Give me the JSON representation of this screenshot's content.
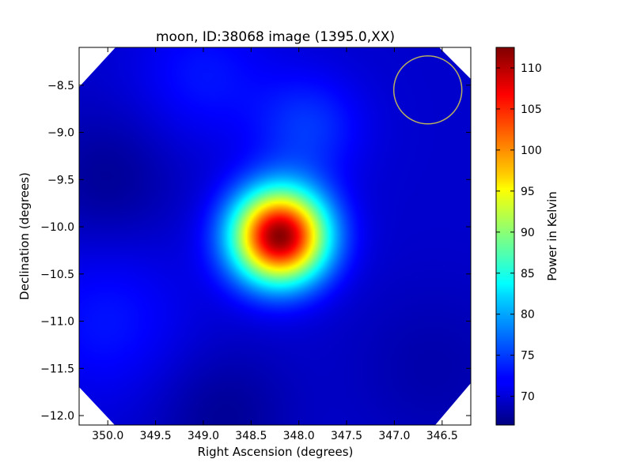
{
  "chart_data": {
    "type": "heatmap",
    "title": "moon, ID:38068 image (1395.0,XX)",
    "xlabel": "Right Ascension (degrees)",
    "ylabel": "Declination (degrees)",
    "colorbar_label": "Power in Kelvin",
    "xlim": [
      350.3,
      346.2
    ],
    "ylim": [
      -12.1,
      -8.1
    ],
    "x_ticks": [
      {
        "value": 350.0,
        "label": "350.0"
      },
      {
        "value": 349.5,
        "label": "349.5"
      },
      {
        "value": 349.0,
        "label": "349.0"
      },
      {
        "value": 348.5,
        "label": "348.5"
      },
      {
        "value": 348.0,
        "label": "348.0"
      },
      {
        "value": 347.5,
        "label": "347.5"
      },
      {
        "value": 347.0,
        "label": "347.0"
      },
      {
        "value": 346.5,
        "label": "346.5"
      }
    ],
    "y_ticks": [
      {
        "value": -8.5,
        "label": "−8.5"
      },
      {
        "value": -9.0,
        "label": "−9.0"
      },
      {
        "value": -9.5,
        "label": "−9.5"
      },
      {
        "value": -10.0,
        "label": "−10.0"
      },
      {
        "value": -10.5,
        "label": "−10.5"
      },
      {
        "value": -11.0,
        "label": "−11.0"
      },
      {
        "value": -11.5,
        "label": "−11.5"
      },
      {
        "value": -12.0,
        "label": "−12.0"
      }
    ],
    "colorbar_range": [
      66.5,
      112.5
    ],
    "colorbar_ticks": [
      {
        "value": 70,
        "label": "70"
      },
      {
        "value": 75,
        "label": "75"
      },
      {
        "value": 80,
        "label": "80"
      },
      {
        "value": 85,
        "label": "85"
      },
      {
        "value": 90,
        "label": "90"
      },
      {
        "value": 95,
        "label": "95"
      },
      {
        "value": 100,
        "label": "100"
      },
      {
        "value": 105,
        "label": "105"
      },
      {
        "value": 110,
        "label": "110"
      }
    ],
    "colormap": "jet",
    "background_level": 70,
    "features": [
      {
        "kind": "peak",
        "ra": 348.2,
        "dec": -10.1,
        "amplitude": 42,
        "sigma_deg": 0.35
      },
      {
        "kind": "faint-bump",
        "ra": 347.9,
        "dec": -8.95,
        "amplitude": 4.5,
        "sigma_deg": 0.4
      },
      {
        "kind": "faint-bump",
        "ra": 349.0,
        "dec": -8.4,
        "amplitude": 3,
        "sigma_deg": 0.5
      },
      {
        "kind": "faint-bump",
        "ra": 350.0,
        "dec": -11.0,
        "amplitude": 3,
        "sigma_deg": 0.6
      },
      {
        "kind": "faint-dip",
        "ra": 350.0,
        "dec": -9.5,
        "amplitude": -2.5,
        "sigma_deg": 0.5
      },
      {
        "kind": "faint-dip",
        "ra": 348.8,
        "dec": -12.0,
        "amplitude": -2.5,
        "sigma_deg": 0.5
      },
      {
        "kind": "faint-dip",
        "ra": 346.6,
        "dec": -11.5,
        "amplitude": -1.5,
        "sigma_deg": 0.6
      }
    ],
    "beam_circle": {
      "ra": 346.65,
      "dec": -8.55,
      "radius_deg": 0.36,
      "color": "#b8b060"
    },
    "grid": false
  }
}
